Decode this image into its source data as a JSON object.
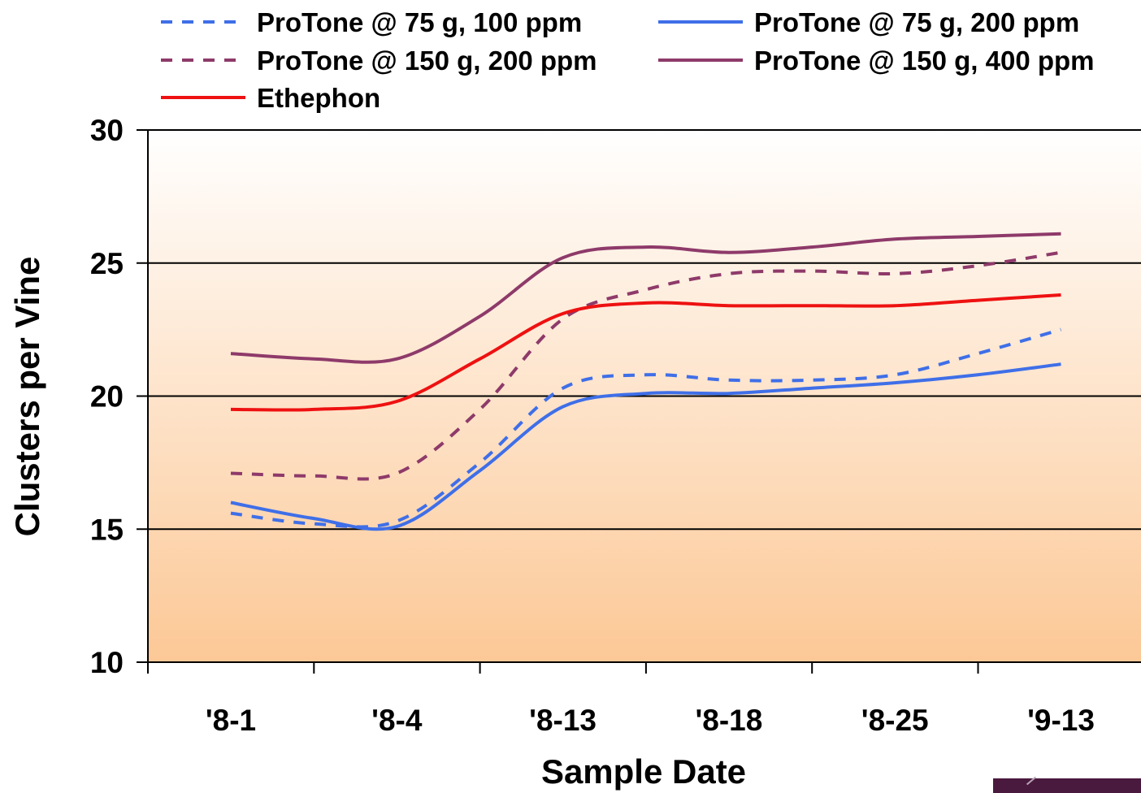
{
  "chart_data": {
    "type": "line",
    "title": "",
    "xlabel": "Sample Date",
    "ylabel": "Clusters per Vine",
    "ylim": [
      10,
      30
    ],
    "yticks": [
      10,
      15,
      20,
      25,
      30
    ],
    "grid": true,
    "legend_position": "top",
    "categories": [
      "'8-1",
      "'8-4",
      "'8-13",
      "'8-18",
      "'8-25",
      "'9-13"
    ],
    "series": [
      {
        "name": "ProTone @ 75 g, 100 ppm",
        "style": "dashed",
        "color": "#3f6fe8",
        "x": [
          0,
          0.5,
          1,
          1.5,
          2,
          2.5,
          3,
          3.5,
          4,
          4.5,
          5
        ],
        "y": [
          15.6,
          15.2,
          15.3,
          17.5,
          20.3,
          20.8,
          20.6,
          20.6,
          20.8,
          21.6,
          22.5
        ]
      },
      {
        "name": "ProTone @ 75 g, 200 ppm",
        "style": "solid",
        "color": "#3f6fe8",
        "x": [
          0,
          0.5,
          1,
          1.5,
          2,
          2.5,
          3,
          3.5,
          4,
          4.5,
          5
        ],
        "y": [
          16.0,
          15.4,
          15.1,
          17.2,
          19.6,
          20.1,
          20.1,
          20.3,
          20.5,
          20.8,
          21.2
        ]
      },
      {
        "name": "ProTone @ 150 g, 200 ppm",
        "style": "dashed",
        "color": "#8e3a6a",
        "x": [
          0,
          0.5,
          1,
          1.5,
          2,
          2.5,
          3,
          3.5,
          4,
          4.5,
          5
        ],
        "y": [
          17.1,
          17.0,
          17.1,
          19.5,
          22.9,
          24.0,
          24.6,
          24.7,
          24.6,
          24.9,
          25.4
        ]
      },
      {
        "name": "ProTone @ 150 g, 400 ppm",
        "style": "solid",
        "color": "#8e3a6a",
        "x": [
          0,
          0.5,
          1,
          1.5,
          2,
          2.5,
          3,
          3.5,
          4,
          4.5,
          5
        ],
        "y": [
          21.6,
          21.4,
          21.4,
          23.0,
          25.2,
          25.6,
          25.4,
          25.6,
          25.9,
          26.0,
          26.1
        ]
      },
      {
        "name": "Ethephon",
        "style": "solid",
        "color": "#ee1111",
        "x": [
          0,
          0.5,
          1,
          1.5,
          2,
          2.5,
          3,
          3.5,
          4,
          4.5,
          5
        ],
        "y": [
          19.5,
          19.5,
          19.8,
          21.4,
          23.1,
          23.5,
          23.4,
          23.4,
          23.4,
          23.6,
          23.8
        ]
      }
    ]
  },
  "colors": {
    "plot_bg_top": "#ffffff",
    "plot_bg_bottom": "#fcc896",
    "grid": "#000000",
    "logo": "#4a1a3e"
  }
}
